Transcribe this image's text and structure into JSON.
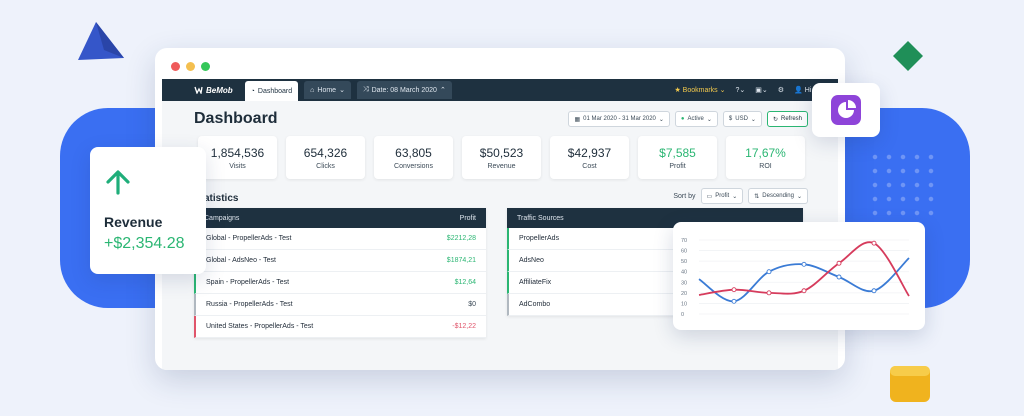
{
  "nav": {
    "logo": "BeMob",
    "tabs": [
      {
        "label": "Dashboard",
        "icon": "gauge-icon"
      },
      {
        "label": "Home",
        "icon": "home-icon"
      },
      {
        "label": "Date: 08 March 2020",
        "icon": "shuffle-icon"
      }
    ],
    "bookmarks": "Bookmarks",
    "user": "Hi, User"
  },
  "page": {
    "title": "Dashboard"
  },
  "filters": {
    "date_range": "01 Mar 2020 - 31 Mar 2020",
    "status": "Active",
    "currency": "USD",
    "refresh": "Refresh"
  },
  "stats": [
    {
      "value": "1,854,536",
      "label": "Visits",
      "highlight": false
    },
    {
      "value": "654,326",
      "label": "Clicks",
      "highlight": false
    },
    {
      "value": "63,805",
      "label": "Conversions",
      "highlight": false
    },
    {
      "value": "$50,523",
      "label": "Revenue",
      "highlight": false
    },
    {
      "value": "$42,937",
      "label": "Cost",
      "highlight": false
    },
    {
      "value": "$7,585",
      "label": "Profit",
      "highlight": true
    },
    {
      "value": "17,67%",
      "label": "ROI",
      "highlight": true
    }
  ],
  "section": {
    "title": "Statistics"
  },
  "sort": {
    "label": "Sort by",
    "field": "Profit",
    "order": "Descending"
  },
  "campaigns": {
    "header": "Campaigns",
    "value_header": "Profit",
    "rows": [
      {
        "name": "Global - PropellerAds - Test",
        "value": "$2212,28",
        "tone": "pos"
      },
      {
        "name": "Global - AdsNeo - Test",
        "value": "$1874,21",
        "tone": "pos"
      },
      {
        "name": "Spain - PropellerAds - Test",
        "value": "$12,64",
        "tone": "pos"
      },
      {
        "name": "Russia - PropellerAds - Test",
        "value": "$0",
        "tone": "neu"
      },
      {
        "name": "United States - PropellerAds - Test",
        "value": "-$12,22",
        "tone": "neg"
      }
    ]
  },
  "traffic_sources": {
    "header": "Traffic Sources",
    "rows": [
      "PropellerAds",
      "AdsNeo",
      "AffiliateFix",
      "AdCombo"
    ]
  },
  "revenue_card": {
    "label": "Revenue",
    "value": "+$2,354.28"
  },
  "colors": {
    "accent": "#2bb673",
    "navbar": "#1e3140",
    "negative": "#e0556b",
    "brand_blue": "#3a6ff2"
  },
  "chart_data": {
    "type": "line",
    "ylim": [
      0,
      70
    ],
    "yticks": [
      "70",
      "60",
      "50",
      "40",
      "30",
      "20",
      "10",
      "0"
    ],
    "x": [
      1,
      2,
      3,
      4,
      5,
      6,
      7
    ],
    "series": [
      {
        "color": "#3a7bd5",
        "values": [
          33,
          12,
          40,
          47,
          35,
          22,
          53
        ]
      },
      {
        "color": "#d63b5c",
        "values": [
          18,
          23,
          20,
          22,
          48,
          67,
          17
        ]
      }
    ]
  }
}
